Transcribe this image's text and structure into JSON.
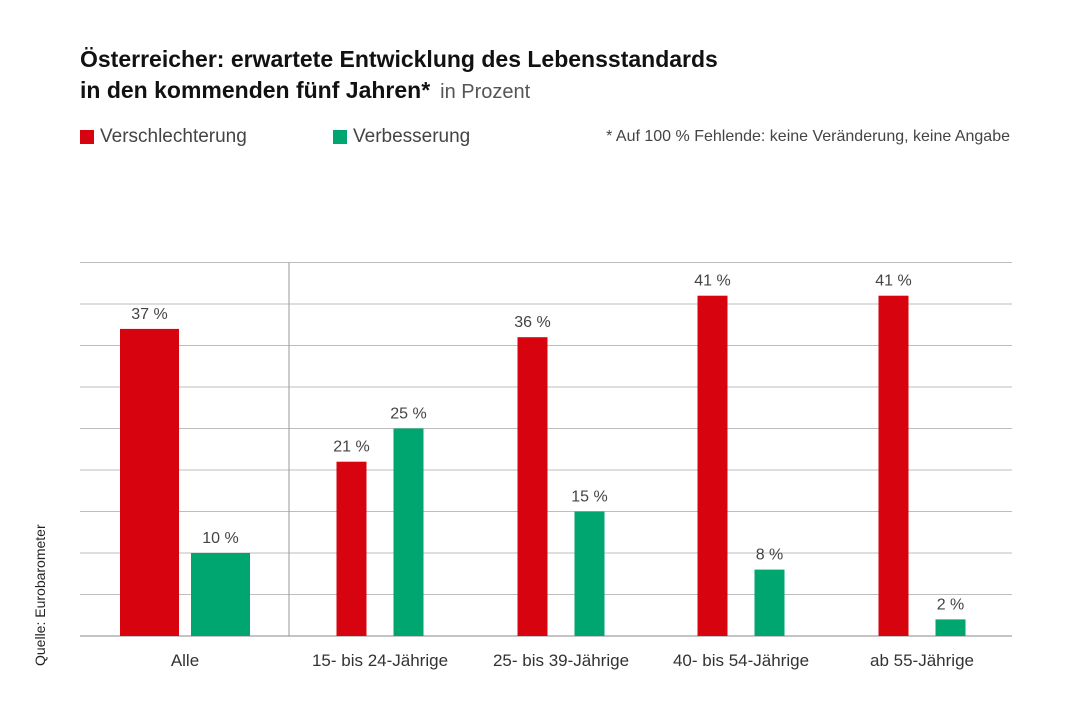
{
  "chart_data": {
    "type": "bar",
    "title_line1": "Österreicher: erwartete Entwicklung des Lebensstandards",
    "title_line2": "in den kommenden fünf Jahren*",
    "subtitle": "in Prozent",
    "footnote": "* Auf 100 % Fehlende: keine Veränderung, keine Angabe",
    "source": "Quelle: Eurobarometer",
    "categories": [
      "Alle",
      "15- bis 24-Jährige",
      "25- bis 39-Jährige",
      "40- bis 54-Jährige",
      "ab 55-Jährige"
    ],
    "series": [
      {
        "name": "Verschlechterung",
        "color": "#d7040f",
        "values": [
          37,
          21,
          36,
          41,
          41
        ],
        "labels": [
          "37 %",
          "21 %",
          "36 %",
          "41 %",
          "41 %"
        ]
      },
      {
        "name": "Verbesserung",
        "color": "#00a66f",
        "values": [
          10,
          25,
          15,
          8,
          2
        ],
        "labels": [
          "10 %",
          "25 %",
          "15 %",
          "8 %",
          "2 %"
        ]
      }
    ],
    "ylim": [
      0,
      45
    ],
    "grid": true,
    "xlabel": "",
    "ylabel": ""
  }
}
